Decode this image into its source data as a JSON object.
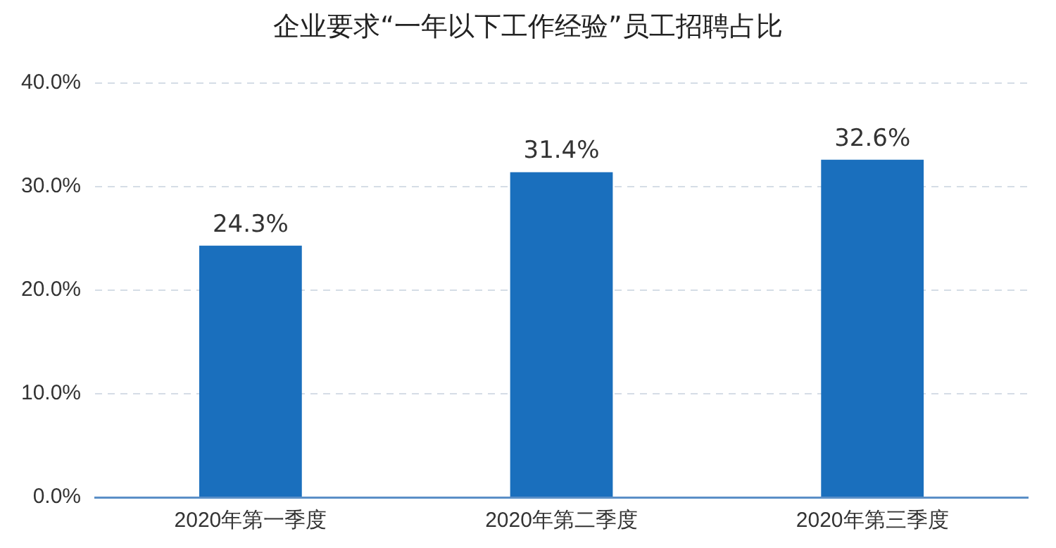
{
  "chart_data": {
    "type": "bar",
    "title": "企业要求“一年以下工作经验”员工招聘占比",
    "categories": [
      "2020年第一季度",
      "2020年第二季度",
      "2020年第三季度"
    ],
    "values": [
      24.3,
      31.4,
      32.6
    ],
    "color": "#1a6fbd",
    "value_labels": [
      "24.3%",
      "31.4%",
      "32.6%"
    ],
    "ylim": [
      0,
      40
    ],
    "yticks": [
      {
        "value": 0,
        "label": "0.0%"
      },
      {
        "value": 10,
        "label": "10.0%"
      },
      {
        "value": 20,
        "label": "20.0%"
      },
      {
        "value": 30,
        "label": "30.0%"
      },
      {
        "value": 40,
        "label": "40.0%"
      }
    ],
    "grid": "y",
    "line_style": "dashed",
    "legend": false
  }
}
